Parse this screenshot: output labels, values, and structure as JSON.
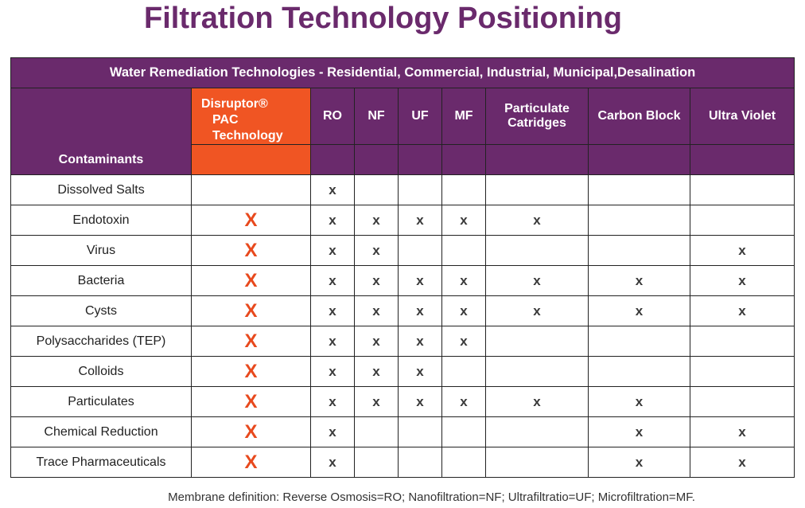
{
  "title": "Filtration Technology Positioning",
  "banner": "Water Remediation Technologies - Residential, Commercial, Industrial, Municipal,Desalination",
  "header": {
    "contaminants": "Contaminants",
    "disruptor": [
      "Disruptor®",
      "PAC",
      "Technology"
    ],
    "columns": [
      "RO",
      "NF",
      "UF",
      "MF",
      "Particulate Catridges",
      "Carbon Block",
      "Ultra Violet"
    ]
  },
  "rows": [
    {
      "name": "Dissolved Salts",
      "pac": "",
      "ro": "x",
      "nf": "",
      "uf": "",
      "mf": "",
      "particulate": "",
      "carbon": "",
      "uv": ""
    },
    {
      "name": "Endotoxin",
      "pac": "X",
      "ro": "x",
      "nf": "x",
      "uf": "x",
      "mf": "x",
      "particulate": "x",
      "carbon": "",
      "uv": ""
    },
    {
      "name": "Virus",
      "pac": "X",
      "ro": "x",
      "nf": "x",
      "uf": "",
      "mf": "",
      "particulate": "",
      "carbon": "",
      "uv": "x"
    },
    {
      "name": "Bacteria",
      "pac": "X",
      "ro": "x",
      "nf": "x",
      "uf": "x",
      "mf": "x",
      "particulate": "x",
      "carbon": "x",
      "uv": "x"
    },
    {
      "name": "Cysts",
      "pac": "X",
      "ro": "x",
      "nf": "x",
      "uf": "x",
      "mf": "x",
      "particulate": "x",
      "carbon": "x",
      "uv": "x"
    },
    {
      "name": "Polysaccharides (TEP)",
      "pac": "X",
      "ro": "x",
      "nf": "x",
      "uf": "x",
      "mf": "x",
      "particulate": "",
      "carbon": "",
      "uv": ""
    },
    {
      "name": "Colloids",
      "pac": "X",
      "ro": "x",
      "nf": "x",
      "uf": "x",
      "mf": "",
      "particulate": "",
      "carbon": "",
      "uv": ""
    },
    {
      "name": "Particulates",
      "pac": "X",
      "ro": "x",
      "nf": "x",
      "uf": "x",
      "mf": "x",
      "particulate": "x",
      "carbon": "x",
      "uv": ""
    },
    {
      "name": "Chemical Reduction",
      "pac": "X",
      "ro": "x",
      "nf": "",
      "uf": "",
      "mf": "",
      "particulate": "",
      "carbon": "x",
      "uv": "x"
    },
    {
      "name": "Trace Pharmaceuticals",
      "pac": "X",
      "ro": "x",
      "nf": "",
      "uf": "",
      "mf": "",
      "particulate": "",
      "carbon": "x",
      "uv": "x"
    }
  ],
  "footnote": "Membrane definition: Reverse Osmosis=RO; Nanofiltration=NF; Ultrafiltratio=UF;  Microfiltration=MF.",
  "colors": {
    "purple": "#6a2a6c",
    "orange": "#f05523",
    "pac_mark": "#e8491d"
  }
}
